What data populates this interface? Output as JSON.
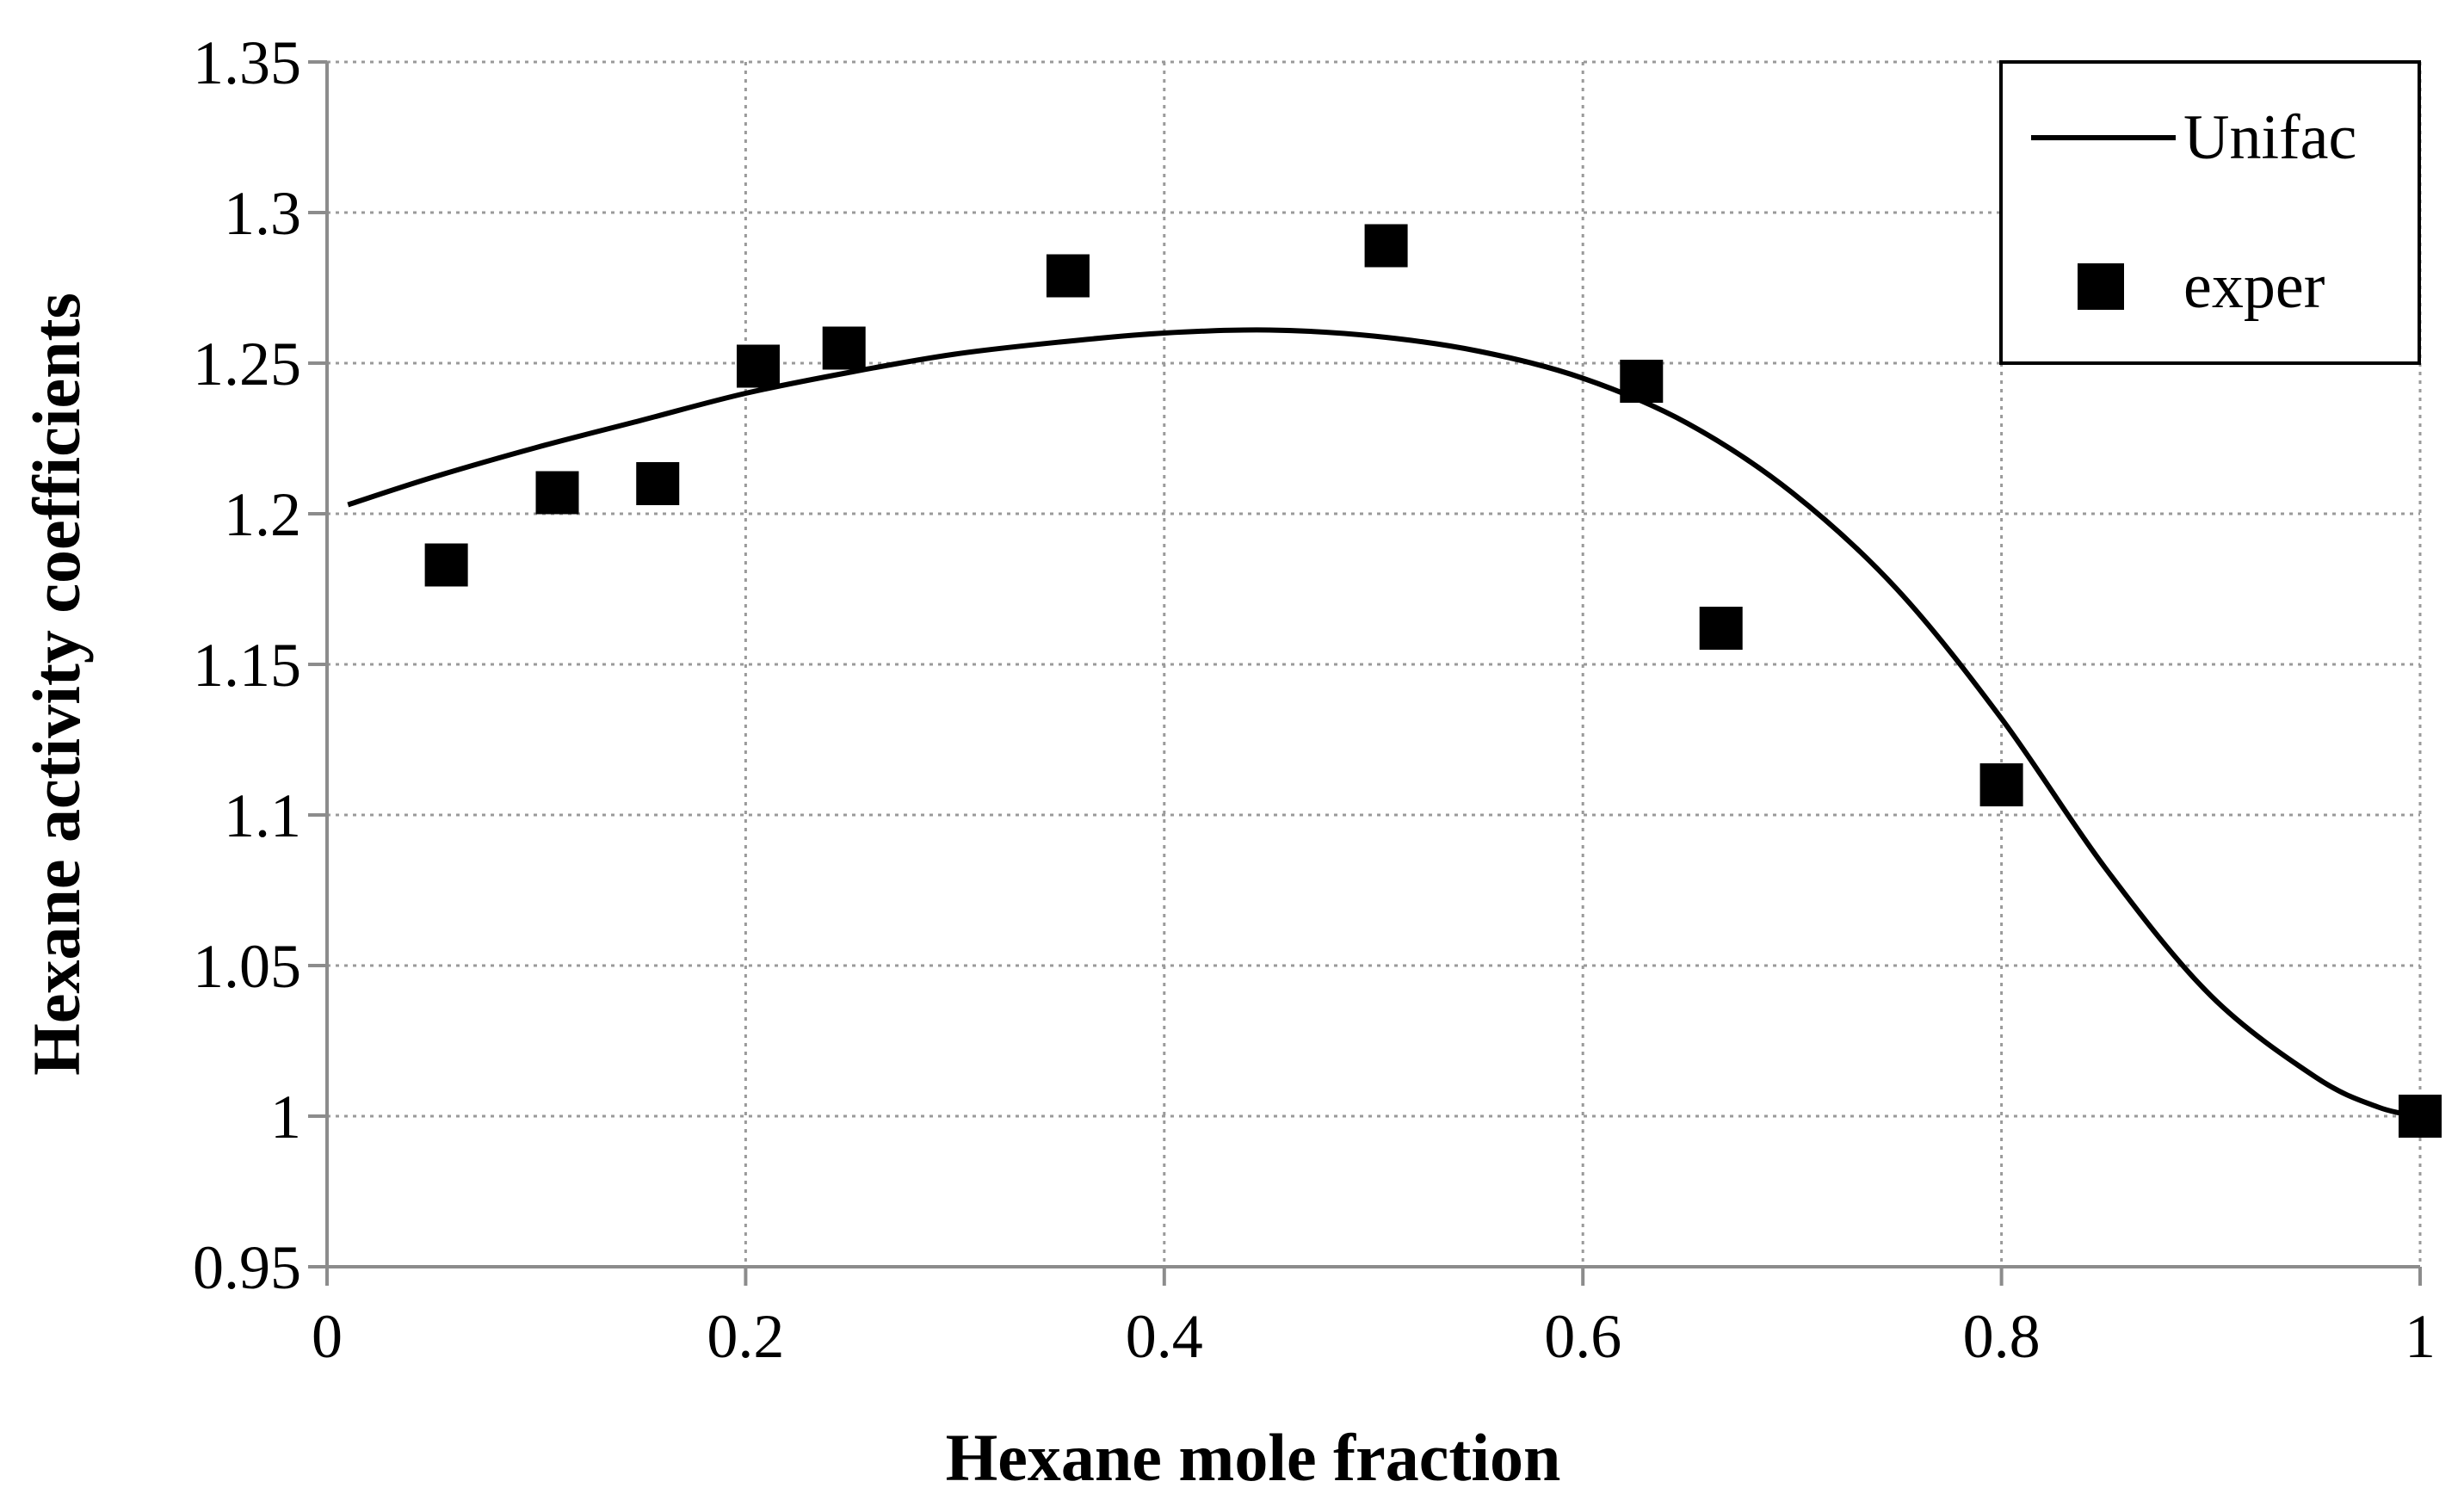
{
  "chart_data": {
    "type": "scatter",
    "title": "",
    "xlabel": "Hexane mole fraction",
    "ylabel": "Hexane activity coefficients",
    "xlim": [
      0,
      1
    ],
    "ylim": [
      0.95,
      1.35
    ],
    "x_ticks": [
      0,
      0.2,
      0.4,
      0.6,
      0.8,
      1
    ],
    "x_tick_labels": [
      "0",
      "0.2",
      "0.4",
      "0.6",
      "0.8",
      "1"
    ],
    "y_ticks": [
      0.95,
      1.0,
      1.05,
      1.1,
      1.15,
      1.2,
      1.25,
      1.3,
      1.35
    ],
    "y_tick_labels": [
      "0.95",
      "1",
      "1.05",
      "1.1",
      "1.15",
      "1.2",
      "1.25",
      "1.3",
      "1.35"
    ],
    "grid": true,
    "legend_position": "top-right",
    "series": [
      {
        "name": "Unifac",
        "kind": "line",
        "color": "#000000",
        "x": [
          0.01,
          0.05,
          0.1,
          0.15,
          0.2,
          0.25,
          0.3,
          0.35,
          0.4,
          0.45,
          0.5,
          0.55,
          0.6,
          0.65,
          0.7,
          0.75,
          0.8,
          0.85,
          0.9,
          0.95,
          0.98,
          1.0
        ],
        "y": [
          1.203,
          1.212,
          1.222,
          1.231,
          1.24,
          1.247,
          1.253,
          1.257,
          1.26,
          1.261,
          1.259,
          1.254,
          1.245,
          1.23,
          1.207,
          1.175,
          1.132,
          1.082,
          1.04,
          1.013,
          1.003,
          1.0
        ]
      },
      {
        "name": "exper",
        "kind": "scatter",
        "marker": "square",
        "color": "#000000",
        "x": [
          0.057,
          0.11,
          0.158,
          0.206,
          0.247,
          0.354,
          0.506,
          0.628,
          0.666,
          0.8,
          1.0
        ],
        "y": [
          1.183,
          1.207,
          1.21,
          1.249,
          1.255,
          1.279,
          1.289,
          1.244,
          1.162,
          1.11,
          1.0
        ]
      }
    ]
  }
}
